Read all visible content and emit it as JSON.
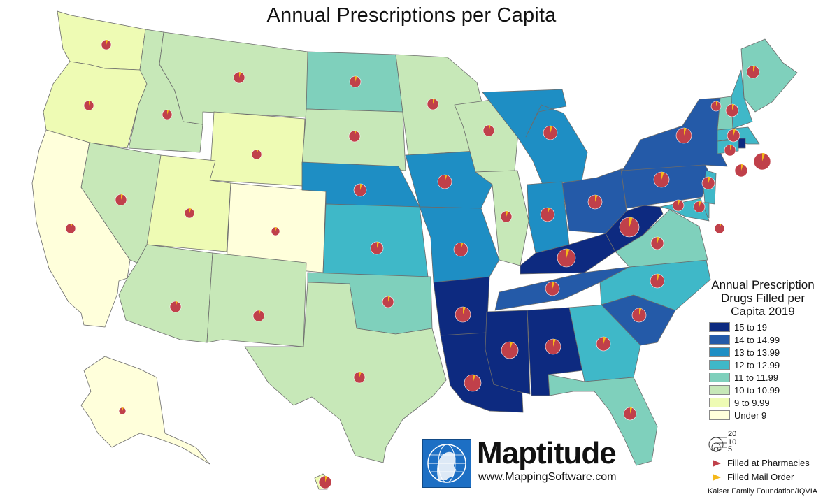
{
  "title": "Annual Prescriptions per Capita",
  "legend": {
    "title_lines": [
      "Annual Prescription",
      "Drugs Filled per",
      "Capita 2019"
    ],
    "classes": [
      {
        "label": "15 to 19",
        "color": "#0d2a80"
      },
      {
        "label": "14 to 14.99",
        "color": "#245aa8"
      },
      {
        "label": "13 to 13.99",
        "color": "#1e8ec4"
      },
      {
        "label": "12 to 12.99",
        "color": "#3fb8c8"
      },
      {
        "label": "11 to 11.99",
        "color": "#7fd0bc"
      },
      {
        "label": "10 to 10.99",
        "color": "#c7e8b8"
      },
      {
        "label": "9 to 9.99",
        "color": "#eefbb4"
      },
      {
        "label": "Under 9",
        "color": "#ffffdb"
      }
    ],
    "size_labels": [
      "20",
      "10",
      "5"
    ],
    "symbols": [
      {
        "label": "Filled at Pharmacies",
        "color": "#c0404a"
      },
      {
        "label": "Filled Mail Order",
        "color": "#f5b81a"
      }
    ]
  },
  "logo": {
    "name": "Maptitude",
    "url": "www.MappingSoftware.com"
  },
  "source": "Kaiser Family Foundation/IQVIA",
  "pie_colors": {
    "pharmacy": "#c0404a",
    "mail": "#f5b81a"
  },
  "states": [
    {
      "name": "Washington",
      "class": 6
    },
    {
      "name": "Oregon",
      "class": 6
    },
    {
      "name": "California",
      "class": 7
    },
    {
      "name": "Idaho",
      "class": 5
    },
    {
      "name": "Nevada",
      "class": 5
    },
    {
      "name": "Montana",
      "class": 5
    },
    {
      "name": "Wyoming",
      "class": 6
    },
    {
      "name": "Utah",
      "class": 6
    },
    {
      "name": "Arizona",
      "class": 5
    },
    {
      "name": "Colorado",
      "class": 7
    },
    {
      "name": "New Mexico",
      "class": 5
    },
    {
      "name": "North Dakota",
      "class": 4
    },
    {
      "name": "South Dakota",
      "class": 5
    },
    {
      "name": "Nebraska",
      "class": 2
    },
    {
      "name": "Kansas",
      "class": 3
    },
    {
      "name": "Oklahoma",
      "class": 4
    },
    {
      "name": "Texas",
      "class": 5
    },
    {
      "name": "Minnesota",
      "class": 5
    },
    {
      "name": "Iowa",
      "class": 2
    },
    {
      "name": "Missouri",
      "class": 2
    },
    {
      "name": "Arkansas",
      "class": 0
    },
    {
      "name": "Louisiana",
      "class": 0
    },
    {
      "name": "Wisconsin",
      "class": 5
    },
    {
      "name": "Illinois",
      "class": 5
    },
    {
      "name": "Michigan",
      "class": 2
    },
    {
      "name": "Indiana",
      "class": 2
    },
    {
      "name": "Ohio",
      "class": 1
    },
    {
      "name": "Kentucky",
      "class": 0
    },
    {
      "name": "Tennessee",
      "class": 1
    },
    {
      "name": "Mississippi",
      "class": 0
    },
    {
      "name": "Alabama",
      "class": 0
    },
    {
      "name": "Georgia",
      "class": 3
    },
    {
      "name": "Florida",
      "class": 4
    },
    {
      "name": "South Carolina",
      "class": 1
    },
    {
      "name": "North Carolina",
      "class": 3
    },
    {
      "name": "Virginia",
      "class": 4
    },
    {
      "name": "West Virginia",
      "class": 0
    },
    {
      "name": "Pennsylvania",
      "class": 1
    },
    {
      "name": "New York",
      "class": 1
    },
    {
      "name": "Maine",
      "class": 4
    },
    {
      "name": "Vermont",
      "class": 4
    },
    {
      "name": "New Hampshire",
      "class": 3
    },
    {
      "name": "Massachusetts",
      "class": 3
    },
    {
      "name": "Rhode Island",
      "class": 0
    },
    {
      "name": "Connecticut",
      "class": 3
    },
    {
      "name": "New Jersey",
      "class": 3
    },
    {
      "name": "Delaware",
      "class": 3
    },
    {
      "name": "Maryland",
      "class": 3
    },
    {
      "name": "Alaska",
      "class": 7
    },
    {
      "name": "Hawaii",
      "class": 6
    }
  ]
}
